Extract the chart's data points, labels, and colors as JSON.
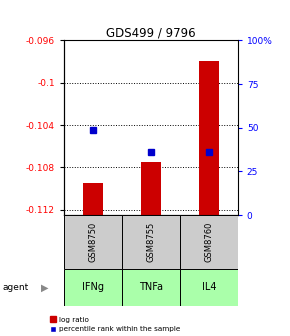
{
  "title": "GDS499 / 9796",
  "categories": [
    "IFNg",
    "TNFa",
    "IL4"
  ],
  "gsm_labels": [
    "GSM8750",
    "GSM8755",
    "GSM8760"
  ],
  "bar_values": [
    -0.1095,
    -0.1075,
    -0.098
  ],
  "blue_square_log": [
    -0.1045,
    -0.1065,
    -0.1065
  ],
  "bar_bottom": -0.1125,
  "ylim_left": [
    -0.1125,
    -0.096
  ],
  "ylim_right": [
    0,
    100
  ],
  "yticks_left": [
    -0.112,
    -0.108,
    -0.104,
    -0.1,
    -0.096
  ],
  "yticks_right": [
    0,
    25,
    50,
    75,
    100
  ],
  "ytick_labels_left": [
    "-0.112",
    "-0.108",
    "-0.104",
    "-0.1",
    "-0.096"
  ],
  "ytick_labels_right": [
    "0",
    "25",
    "50",
    "75",
    "100%"
  ],
  "bar_color": "#cc0000",
  "square_color": "#0000cc",
  "gsm_bg_color": "#cccccc",
  "agent_bg_color": "#aaffaa",
  "agent_label": "agent",
  "legend_bar": "log ratio",
  "legend_square": "percentile rank within the sample",
  "bar_width": 0.35,
  "xlim": [
    -0.5,
    2.5
  ]
}
